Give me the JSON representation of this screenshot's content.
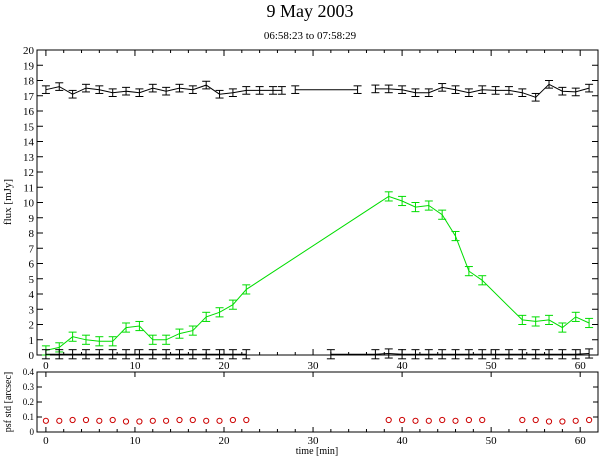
{
  "chart_data": [
    {
      "type": "line",
      "title": "9 May 2003",
      "subtitle": "06:58:23 to 07:58:29",
      "ylabel": "flux [mJy]",
      "xlim": [
        -1,
        62
      ],
      "ylim": [
        0,
        20
      ],
      "x_ticks": [
        0,
        10,
        20,
        30,
        40,
        50,
        60
      ],
      "y_ticks": [
        0,
        1,
        2,
        3,
        4,
        5,
        6,
        7,
        8,
        9,
        10,
        11,
        12,
        13,
        14,
        15,
        16,
        17,
        18,
        19,
        20
      ],
      "series": [
        {
          "color": "#000000",
          "error": 0.25,
          "segments": [
            [
              [
                0,
                17.4
              ],
              [
                1.5,
                17.6
              ],
              [
                3,
                17.1
              ],
              [
                4.5,
                17.5
              ],
              [
                6,
                17.4
              ],
              [
                7.5,
                17.2
              ],
              [
                9,
                17.3
              ],
              [
                10.5,
                17.2
              ],
              [
                12,
                17.5
              ],
              [
                13.5,
                17.3
              ],
              [
                15,
                17.5
              ],
              [
                16.5,
                17.4
              ],
              [
                18,
                17.7
              ],
              [
                19.5,
                17.1
              ],
              [
                21,
                17.2
              ],
              [
                22.5,
                17.35
              ],
              [
                24,
                17.35
              ],
              [
                25.5,
                17.35
              ],
              [
                26.5,
                17.35
              ]
            ],
            [
              [
                28,
                17.4
              ],
              [
                35,
                17.4
              ]
            ],
            [
              [
                37,
                17.45
              ],
              [
                38.5,
                17.45
              ],
              [
                40,
                17.4
              ],
              [
                41.5,
                17.2
              ],
              [
                43,
                17.2
              ],
              [
                44.5,
                17.55
              ],
              [
                46,
                17.4
              ],
              [
                47.5,
                17.2
              ],
              [
                49,
                17.4
              ],
              [
                50.5,
                17.35
              ],
              [
                52,
                17.35
              ],
              [
                53.5,
                17.2
              ],
              [
                55,
                16.9
              ],
              [
                56.5,
                17.75
              ],
              [
                58,
                17.3
              ],
              [
                59.5,
                17.25
              ],
              [
                61,
                17.5
              ]
            ]
          ]
        },
        {
          "color": "#00dd00",
          "error": 0.3,
          "segments": [
            [
              [
                0,
                0.3
              ],
              [
                1.5,
                0.5
              ],
              [
                3,
                1.2
              ],
              [
                4.5,
                1.0
              ],
              [
                6,
                0.9
              ],
              [
                7.5,
                0.9
              ],
              [
                9,
                1.8
              ],
              [
                10.5,
                1.9
              ],
              [
                12,
                1.0
              ],
              [
                13.5,
                1.0
              ],
              [
                15,
                1.4
              ],
              [
                16.5,
                1.6
              ],
              [
                18,
                2.5
              ],
              [
                19.5,
                2.8
              ],
              [
                21,
                3.3
              ],
              [
                22.5,
                4.3
              ],
              [
                38.5,
                10.4
              ],
              [
                40,
                10.1
              ],
              [
                41.5,
                9.7
              ],
              [
                43,
                9.8
              ],
              [
                44.5,
                9.2
              ],
              [
                46,
                7.8
              ],
              [
                47.5,
                5.5
              ],
              [
                49,
                4.9
              ],
              [
                53.5,
                2.3
              ],
              [
                55,
                2.2
              ],
              [
                56.5,
                2.3
              ],
              [
                58,
                1.8
              ],
              [
                59.5,
                2.5
              ],
              [
                61,
                2.1
              ]
            ]
          ]
        },
        {
          "color": "#000000",
          "error": 0.3,
          "segments": [
            [
              [
                0,
                0.05
              ],
              [
                1.5,
                0.05
              ],
              [
                3,
                0.05
              ],
              [
                4.5,
                0.05
              ],
              [
                6,
                0.05
              ],
              [
                7.5,
                0.05
              ],
              [
                9,
                0.05
              ],
              [
                10.5,
                0.05
              ],
              [
                12,
                0.05
              ],
              [
                13.5,
                0.05
              ],
              [
                15,
                0.05
              ],
              [
                16.5,
                0.05
              ],
              [
                18,
                0.05
              ],
              [
                19.5,
                0.05
              ],
              [
                21,
                0.05
              ],
              [
                22.5,
                0.05
              ]
            ],
            [
              [
                32,
                0.05
              ],
              [
                37,
                0.05
              ],
              [
                38.5,
                0.1
              ],
              [
                40,
                0.05
              ],
              [
                41.5,
                0.05
              ],
              [
                43,
                0.05
              ],
              [
                44.5,
                0.05
              ],
              [
                46,
                0.05
              ],
              [
                47.5,
                0.05
              ],
              [
                49,
                0.05
              ],
              [
                50.5,
                0.05
              ],
              [
                52,
                0.05
              ],
              [
                53.5,
                0.05
              ],
              [
                55,
                0.05
              ],
              [
                56.5,
                0.05
              ],
              [
                58,
                0.05
              ],
              [
                59.5,
                0.05
              ],
              [
                61,
                0.1
              ]
            ]
          ]
        }
      ]
    },
    {
      "type": "scatter",
      "xlabel": "time [min]",
      "ylabel": "psf std [arcsec]",
      "xlim": [
        -1,
        62
      ],
      "ylim": [
        0,
        0.4
      ],
      "x_ticks": [
        0,
        10,
        20,
        30,
        40,
        50,
        60
      ],
      "y_ticks": [
        0,
        0.1,
        0.2,
        0.3,
        0.4
      ],
      "y_tick_labels": [
        "0",
        "0.1",
        "0.2",
        "0.3",
        "0.4"
      ],
      "series": [
        {
          "color": "#cc0000",
          "x": [
            0,
            1.5,
            3,
            4.5,
            6,
            7.5,
            9,
            10.5,
            12,
            13.5,
            15,
            16.5,
            18,
            19.5,
            21,
            22.5,
            38.5,
            40,
            41.5,
            43,
            44.5,
            46,
            47.5,
            49,
            53.5,
            55,
            56.5,
            58,
            59.5,
            61
          ],
          "y": [
            0.075,
            0.075,
            0.08,
            0.08,
            0.075,
            0.08,
            0.07,
            0.07,
            0.075,
            0.075,
            0.08,
            0.08,
            0.075,
            0.075,
            0.08,
            0.08,
            0.08,
            0.08,
            0.075,
            0.075,
            0.08,
            0.075,
            0.08,
            0.08,
            0.08,
            0.08,
            0.07,
            0.07,
            0.075,
            0.08
          ]
        }
      ]
    }
  ]
}
